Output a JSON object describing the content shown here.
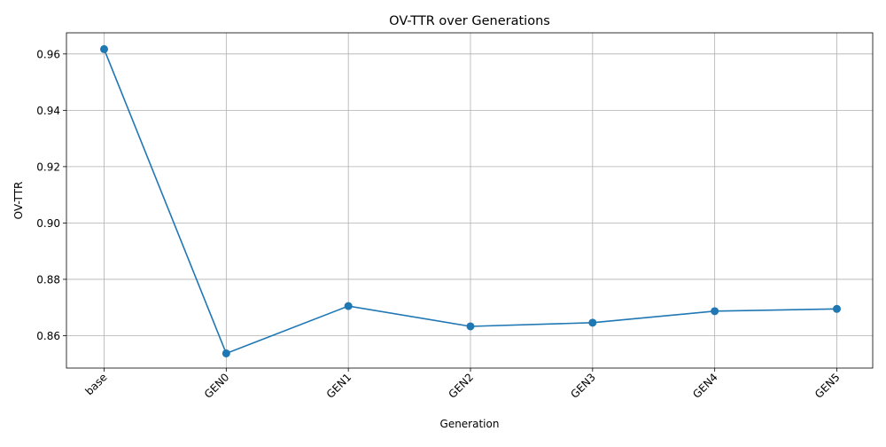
{
  "chart_data": {
    "type": "line",
    "title": "OV-TTR over Generations",
    "xlabel": "Generation",
    "ylabel": "OV-TTR",
    "categories": [
      "base",
      "GEN0",
      "GEN1",
      "GEN2",
      "GEN3",
      "GEN4",
      "GEN5"
    ],
    "series": [
      {
        "values": [
          0.9617,
          0.8537,
          0.8705,
          0.8633,
          0.8646,
          0.8687,
          0.8695
        ]
      }
    ],
    "ylim": [
      0.8485,
      0.9675
    ],
    "yticks": [
      0.86,
      0.88,
      0.9,
      0.92,
      0.94,
      0.96
    ],
    "ytick_labels": [
      "0.86",
      "0.88",
      "0.90",
      "0.92",
      "0.94",
      "0.96"
    ],
    "xtick_rotation_deg": 45,
    "grid": true,
    "line_color": "#1f77b4",
    "marker": "circle"
  }
}
